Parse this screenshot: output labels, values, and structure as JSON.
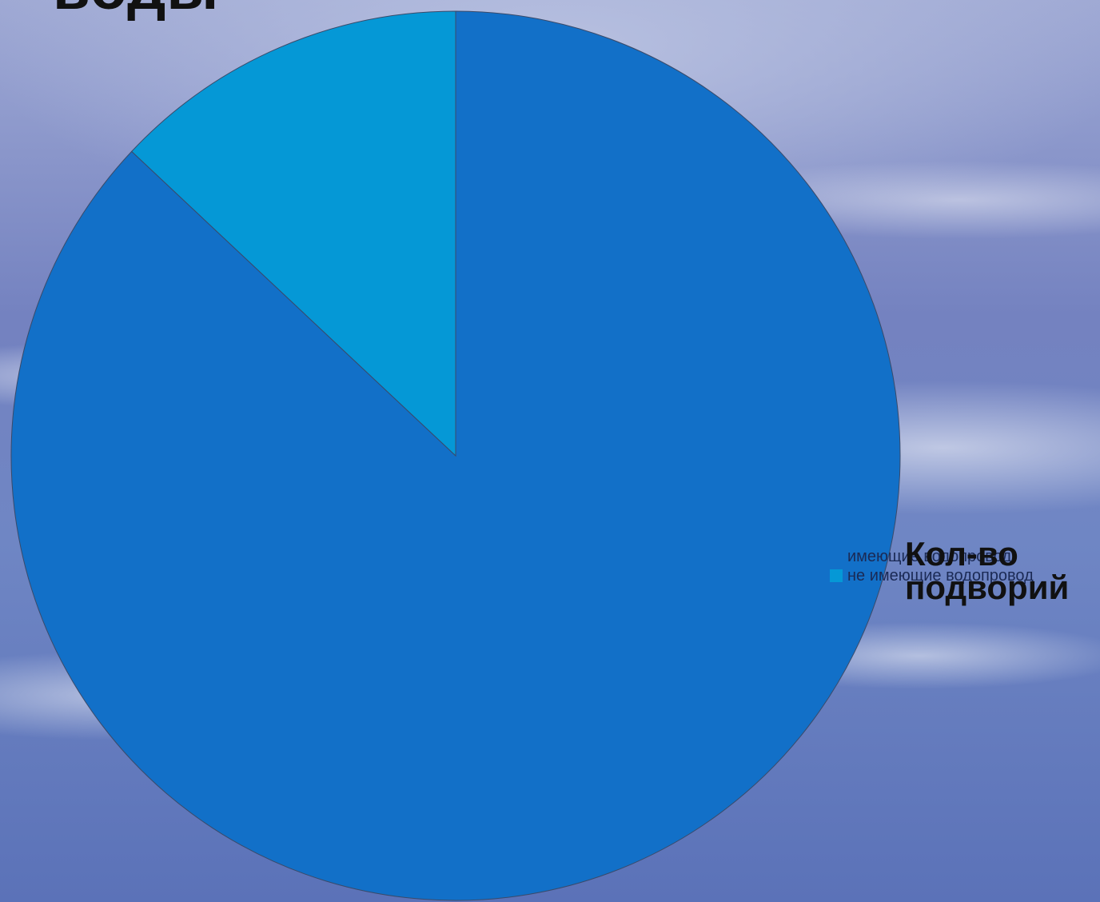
{
  "slide": {
    "title_fragment": "воды"
  },
  "chart_data": {
    "type": "pie",
    "title": "Кол-во подворий",
    "categories": [
      "имеющие водопровод",
      "не имеющие водопровод"
    ],
    "series": [
      {
        "name": "Кол-во подворий",
        "values": [
          87,
          13
        ]
      }
    ],
    "colors": [
      "#1270c8",
      "#0598d6"
    ],
    "legend_position": "right",
    "start_angle_deg": 0,
    "direction": "counterclockwise-from-top"
  }
}
